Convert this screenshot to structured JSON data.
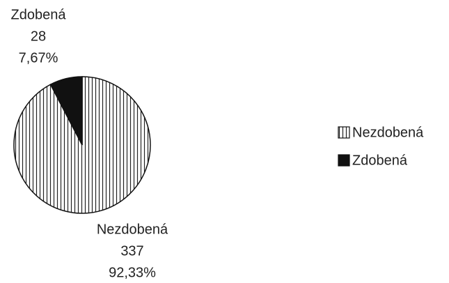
{
  "chart_data": {
    "type": "pie",
    "categories": [
      "Nezdobená",
      "Zdobená"
    ],
    "values": [
      337,
      28
    ],
    "percent_labels": [
      "92,33%",
      "7,67%"
    ],
    "colors": [
      "#ffffff",
      "#111111"
    ],
    "styles": [
      "vertical-hatch",
      "solid"
    ],
    "legend": "right"
  }
}
